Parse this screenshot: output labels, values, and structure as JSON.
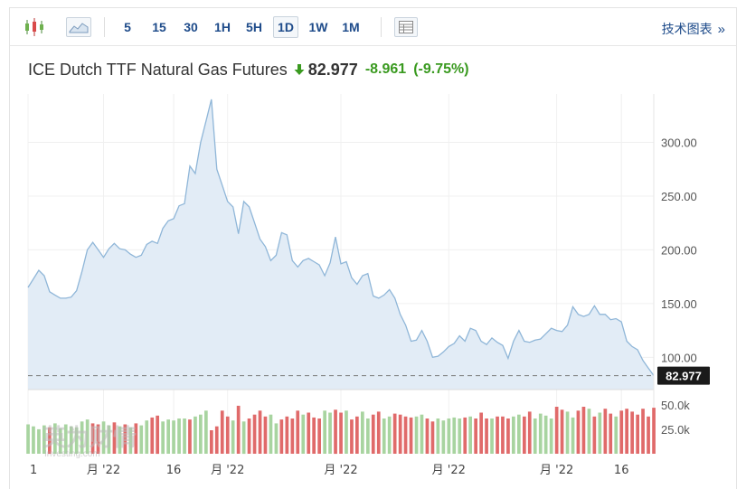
{
  "toolbar": {
    "timeframes": [
      "5",
      "15",
      "30",
      "1H",
      "5H",
      "1D",
      "1W",
      "1M"
    ],
    "active_timeframe": "1D",
    "technical_link": "技术图表",
    "technical_chevron": "»"
  },
  "quote": {
    "name": "ICE Dutch TTF Natural Gas Futures",
    "price": "82.977",
    "change": "-8.961",
    "change_pct": "(-9.75%)",
    "direction": "down"
  },
  "colors": {
    "line": "#8fb6d8",
    "area": "#e2ecf6",
    "vol_up": "#a8d4a0",
    "vol_down": "#e06a6a",
    "price_label_bg": "#1a1a1a",
    "change": "#3a9a20"
  },
  "watermark": {
    "text": "英为财情",
    "sub": "Investing.com"
  },
  "chart_data": {
    "type": "area",
    "price_axis": {
      "ticks": [
        100,
        150,
        200,
        250,
        300
      ],
      "tick_labels": [
        "100.00",
        "150.00",
        "200.00",
        "250.00",
        "300.00"
      ],
      "range": [
        70,
        345
      ]
    },
    "volume_axis": {
      "tick_labels": [
        "50.0k",
        "25.0k"
      ],
      "ticks": [
        50000,
        25000
      ],
      "range": [
        0,
        60000
      ]
    },
    "x_tick_labels": [
      "1",
      "月 '22",
      "16",
      "月 '22",
      "月 '22",
      "月 '22",
      "月 '22",
      "16"
    ],
    "x_tick_index": [
      0,
      14,
      27,
      37,
      58,
      78,
      98,
      110
    ],
    "last_price": 82.977,
    "last_price_label": "82.977",
    "close": [
      165,
      173,
      181,
      176,
      161,
      158,
      155,
      155,
      156,
      162,
      180,
      200,
      207,
      200,
      193,
      201,
      206,
      201,
      200,
      196,
      193,
      195,
      205,
      208,
      206,
      220,
      227,
      229,
      241,
      243,
      278,
      271,
      300,
      320,
      340,
      275,
      260,
      245,
      240,
      215,
      245,
      240,
      225,
      210,
      203,
      190,
      195,
      216,
      214,
      190,
      184,
      190,
      192,
      189,
      186,
      176,
      188,
      212,
      187,
      189,
      174,
      168,
      176,
      178,
      157,
      155,
      158,
      163,
      155,
      140,
      130,
      115,
      116,
      125,
      115,
      100,
      101,
      105,
      110,
      113,
      120,
      115,
      127,
      125,
      115,
      112,
      118,
      114,
      111,
      99,
      115,
      125,
      115,
      114,
      116,
      117,
      122,
      127,
      125,
      124,
      130,
      147,
      140,
      138,
      140,
      148,
      140,
      140,
      135,
      136,
      133,
      115,
      110,
      107,
      97,
      90,
      83
    ],
    "volume": [
      30000,
      28000,
      25000,
      29000,
      27000,
      31000,
      26000,
      30000,
      28000,
      27000,
      33000,
      35000,
      31000,
      30000,
      33000,
      29000,
      32000,
      28000,
      30000,
      27000,
      31000,
      29000,
      34000,
      37000,
      39000,
      33000,
      35000,
      34000,
      36000,
      36000,
      35000,
      38000,
      40000,
      44000,
      24000,
      28000,
      44000,
      38000,
      34000,
      49000,
      33000,
      36000,
      40000,
      44000,
      38000,
      40000,
      31000,
      35000,
      38000,
      36000,
      44000,
      40000,
      42000,
      37000,
      36000,
      44000,
      42000,
      45000,
      42000,
      44000,
      35000,
      38000,
      43000,
      36000,
      40000,
      43000,
      36000,
      38000,
      41000,
      40000,
      38000,
      37000,
      38000,
      40000,
      36000,
      33000,
      36000,
      34000,
      36000,
      37000,
      36000,
      37000,
      38000,
      36000,
      42000,
      36000,
      36000,
      38000,
      38000,
      36000,
      38000,
      40000,
      38000,
      43000,
      36000,
      41000,
      39000,
      36000,
      48000,
      45000,
      43000,
      37000,
      44000,
      48000,
      46000,
      38000,
      42000,
      46000,
      41000,
      38000,
      44000,
      46000,
      43000,
      40000,
      46000,
      38000,
      47000
    ],
    "volume_up": [
      1,
      1,
      1,
      1,
      0,
      1,
      1,
      1,
      1,
      1,
      1,
      1,
      0,
      0,
      1,
      1,
      0,
      1,
      0,
      1,
      0,
      1,
      1,
      0,
      0,
      1,
      1,
      1,
      1,
      1,
      0,
      1,
      1,
      1,
      0,
      0,
      0,
      0,
      1,
      0,
      1,
      0,
      0,
      0,
      0,
      1,
      1,
      0,
      0,
      0,
      0,
      1,
      0,
      0,
      0,
      1,
      1,
      0,
      0,
      1,
      0,
      0,
      1,
      1,
      0,
      0,
      1,
      1,
      0,
      0,
      0,
      0,
      1,
      1,
      0,
      0,
      1,
      1,
      1,
      1,
      1,
      0,
      1,
      0,
      0,
      0,
      1,
      0,
      0,
      0,
      1,
      1,
      0,
      0,
      1,
      1,
      1,
      1,
      0,
      0,
      1,
      1,
      0,
      0,
      1,
      0,
      1,
      0,
      0,
      1,
      0,
      0,
      0,
      0,
      0,
      0,
      0
    ]
  }
}
